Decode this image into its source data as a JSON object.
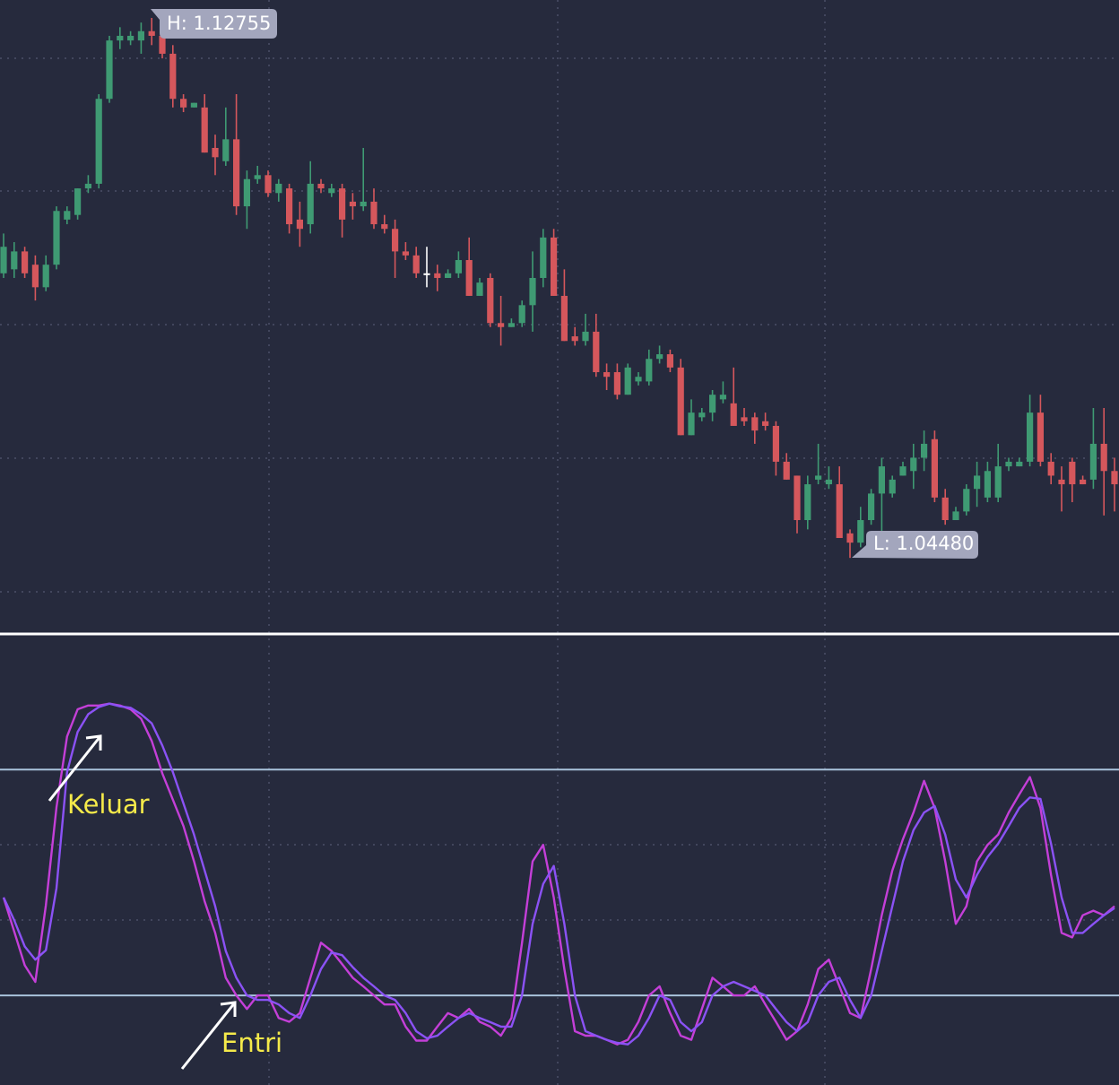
{
  "chart_data": [
    {
      "type": "candlestick",
      "ylim": [
        1.0332,
        1.1289
      ],
      "up_color": "#3f9a73",
      "down_color": "#d5575c",
      "neutral_color": "#ffffff",
      "annotations": [
        "H: 1.12755",
        "L: 1.04480"
      ],
      "ohlc": [
        [
          1.0877,
          1.0937,
          1.087,
          1.0917
        ],
        [
          1.0883,
          1.0924,
          1.087,
          1.091
        ],
        [
          1.091,
          1.0917,
          1.087,
          1.0877
        ],
        [
          1.089,
          1.0904,
          1.0836,
          1.0856
        ],
        [
          1.0856,
          1.0904,
          1.085,
          1.089
        ],
        [
          1.089,
          1.0978,
          1.0883,
          1.0971
        ],
        [
          1.0958,
          1.0978,
          1.0951,
          1.0971
        ],
        [
          1.0965,
          1.1005,
          1.0958,
          1.1005
        ],
        [
          1.1005,
          1.1025,
          1.0998,
          1.1012
        ],
        [
          1.1012,
          1.1147,
          1.1005,
          1.114
        ],
        [
          1.114,
          1.1235,
          1.1134,
          1.1228
        ],
        [
          1.1228,
          1.1248,
          1.1215,
          1.1235
        ],
        [
          1.1228,
          1.1242,
          1.1221,
          1.1235
        ],
        [
          1.1228,
          1.1255,
          1.1208,
          1.1242
        ],
        [
          1.1242,
          1.1262,
          1.1221,
          1.1235
        ],
        [
          1.1235,
          1.12755,
          1.1201,
          1.1208
        ],
        [
          1.1208,
          1.1221,
          1.1127,
          1.114
        ],
        [
          1.114,
          1.1147,
          1.112,
          1.1127
        ],
        [
          1.1127,
          1.1134,
          1.1127,
          1.1134
        ],
        [
          1.1127,
          1.1147,
          1.1059,
          1.1059
        ],
        [
          1.1066,
          1.1086,
          1.1025,
          1.1052
        ],
        [
          1.1046,
          1.1127,
          1.1039,
          1.1079
        ],
        [
          1.1079,
          1.1147,
          1.0965,
          1.0978
        ],
        [
          1.0978,
          1.1032,
          1.0944,
          1.1019
        ],
        [
          1.1019,
          1.1039,
          1.1012,
          1.1025
        ],
        [
          1.1025,
          1.1032,
          1.0992,
          1.0998
        ],
        [
          1.0998,
          1.1019,
          1.0985,
          1.1012
        ],
        [
          1.1005,
          1.1012,
          1.0937,
          1.0951
        ],
        [
          1.0958,
          1.0985,
          1.0917,
          1.0944
        ],
        [
          1.0951,
          1.1046,
          1.0937,
          1.1012
        ],
        [
          1.1012,
          1.1019,
          1.0998,
          1.1005
        ],
        [
          1.0998,
          1.1012,
          1.0992,
          1.1005
        ],
        [
          1.1005,
          1.1012,
          1.0931,
          1.0958
        ],
        [
          1.0985,
          1.0998,
          1.0958,
          1.0978
        ],
        [
          1.0978,
          1.1066,
          1.0971,
          1.0985
        ],
        [
          1.0985,
          1.1005,
          1.0944,
          1.0951
        ],
        [
          1.0951,
          1.0965,
          1.0937,
          1.0944
        ],
        [
          1.0944,
          1.0958,
          1.087,
          1.091
        ],
        [
          1.091,
          1.0924,
          1.0897,
          1.0904
        ],
        [
          1.0904,
          1.0917,
          1.087,
          1.0877
        ],
        [
          1.0877,
          1.0917,
          1.0856,
          1.0877
        ],
        [
          1.0877,
          1.089,
          1.085,
          1.087
        ],
        [
          1.087,
          1.0883,
          1.087,
          1.0877
        ],
        [
          1.0877,
          1.091,
          1.087,
          1.0897
        ],
        [
          1.0897,
          1.0931,
          1.0843,
          1.0843
        ],
        [
          1.0843,
          1.087,
          1.0843,
          1.0863
        ],
        [
          1.087,
          1.0877,
          1.0796,
          1.0802
        ],
        [
          1.0802,
          1.0843,
          1.0768,
          1.0796
        ],
        [
          1.0796,
          1.0809,
          1.0796,
          1.0802
        ],
        [
          1.0802,
          1.0836,
          1.0796,
          1.0829
        ],
        [
          1.0829,
          1.091,
          1.0789,
          1.087
        ],
        [
          1.087,
          1.0944,
          1.0856,
          1.0931
        ],
        [
          1.0931,
          1.0944,
          1.0843,
          1.0843
        ],
        [
          1.0843,
          1.0883,
          1.0775,
          1.0775
        ],
        [
          1.0782,
          1.0796,
          1.0768,
          1.0775
        ],
        [
          1.0775,
          1.0816,
          1.0768,
          1.0789
        ],
        [
          1.0789,
          1.0816,
          1.0721,
          1.0728
        ],
        [
          1.0728,
          1.0741,
          1.0701,
          1.0721
        ],
        [
          1.0728,
          1.0741,
          1.0687,
          1.0694
        ],
        [
          1.0694,
          1.0741,
          1.0694,
          1.0735
        ],
        [
          1.0714,
          1.0728,
          1.0708,
          1.0721
        ],
        [
          1.0714,
          1.0762,
          1.0708,
          1.0748
        ],
        [
          1.0748,
          1.0768,
          1.0741,
          1.0755
        ],
        [
          1.0755,
          1.0762,
          1.0728,
          1.0735
        ],
        [
          1.0735,
          1.0748,
          1.0633,
          1.0633
        ],
        [
          1.0633,
          1.0687,
          1.0633,
          1.0667
        ],
        [
          1.066,
          1.0674,
          1.0654,
          1.0667
        ],
        [
          1.0667,
          1.0701,
          1.0654,
          1.0694
        ],
        [
          1.0687,
          1.0714,
          1.0681,
          1.0694
        ],
        [
          1.0681,
          1.0735,
          1.0647,
          1.0647
        ],
        [
          1.066,
          1.0674,
          1.0647,
          1.0654
        ],
        [
          1.066,
          1.0667,
          1.062,
          1.064
        ],
        [
          1.0654,
          1.0667,
          1.064,
          1.0647
        ],
        [
          1.0647,
          1.0654,
          1.0572,
          1.0593
        ],
        [
          1.0593,
          1.0606,
          1.0566,
          1.0566
        ],
        [
          1.0572,
          1.0572,
          1.0485,
          1.0505
        ],
        [
          1.0505,
          1.0572,
          1.0491,
          1.0559
        ],
        [
          1.0566,
          1.062,
          1.0559,
          1.0572
        ],
        [
          1.0559,
          1.0586,
          1.0552,
          1.0566
        ],
        [
          1.0559,
          1.0586,
          1.0478,
          1.0478
        ],
        [
          1.0485,
          1.0491,
          1.0448,
          1.0471
        ],
        [
          1.0471,
          1.0525,
          1.0464,
          1.0505
        ],
        [
          1.0505,
          1.0552,
          1.0498,
          1.0545
        ],
        [
          1.0545,
          1.0599,
          1.0478,
          1.0586
        ],
        [
          1.0545,
          1.0572,
          1.0539,
          1.0566
        ],
        [
          1.0572,
          1.0593,
          1.0572,
          1.0586
        ],
        [
          1.0579,
          1.062,
          1.0552,
          1.0599
        ],
        [
          1.0599,
          1.064,
          1.0579,
          1.062
        ],
        [
          1.0627,
          1.064,
          1.0532,
          1.0539
        ],
        [
          1.0539,
          1.0552,
          1.0498,
          1.0505
        ],
        [
          1.0505,
          1.0525,
          1.0505,
          1.0518
        ],
        [
          1.0518,
          1.0559,
          1.0512,
          1.0552
        ],
        [
          1.0552,
          1.0593,
          1.0525,
          1.0572
        ],
        [
          1.0539,
          1.0593,
          1.0532,
          1.0579
        ],
        [
          1.0539,
          1.062,
          1.0532,
          1.0586
        ],
        [
          1.0586,
          1.0599,
          1.0579,
          1.0593
        ],
        [
          1.0586,
          1.0599,
          1.0586,
          1.0593
        ],
        [
          1.0593,
          1.0694,
          1.0586,
          1.0667
        ],
        [
          1.0667,
          1.0694,
          1.0586,
          1.0593
        ],
        [
          1.0593,
          1.0606,
          1.0559,
          1.0572
        ],
        [
          1.0566,
          1.0586,
          1.0518,
          1.0559
        ],
        [
          1.0593,
          1.0599,
          1.0532,
          1.0559
        ],
        [
          1.0566,
          1.0572,
          1.0559,
          1.0559
        ],
        [
          1.0566,
          1.0674,
          1.0552,
          1.062
        ],
        [
          1.062,
          1.0674,
          1.0512,
          1.0579
        ],
        [
          1.0579,
          1.0599,
          1.0518,
          1.0559
        ]
      ]
    },
    {
      "type": "line",
      "ylim": [
        -3.8,
        115.3
      ],
      "levels": [
        80,
        20
      ],
      "level_color": "#a9c3dc",
      "annotations": [
        "Keluar",
        "Entri"
      ],
      "annotation_color": "#f5ea4a",
      "series": [
        {
          "color": "#c43fd8",
          "values": [
            46,
            37,
            28,
            23.6,
            44,
            70,
            88.8,
            96,
            97,
            97,
            97.5,
            97,
            96,
            93.5,
            87.6,
            79,
            72,
            65,
            55.6,
            45,
            36.6,
            24.7,
            20,
            16.4,
            20,
            20,
            14,
            13,
            15.3,
            24.7,
            34,
            31.8,
            28.3,
            24.7,
            22.4,
            20,
            17.6,
            17.6,
            11.7,
            8,
            8,
            11.7,
            15.3,
            14,
            16.4,
            13,
            11.7,
            9.3,
            14,
            34,
            55.6,
            60,
            46,
            27,
            10.5,
            9.3,
            9.3,
            8.2,
            7,
            8.2,
            13,
            20,
            22.4,
            15.3,
            9.3,
            8.2,
            16.4,
            24.7,
            22.4,
            20,
            20,
            22.4,
            17.6,
            13,
            8.2,
            10.5,
            17.6,
            27,
            29.5,
            22.4,
            15.3,
            14,
            27,
            41.3,
            53.2,
            61.5,
            68.6,
            77,
            69.8,
            55.6,
            39,
            43.7,
            55.6,
            60,
            62.7,
            68.6,
            73.4,
            78,
            69.8,
            52,
            36.6,
            35.4,
            41.3,
            42.5,
            41.3,
            43.7
          ]
        },
        {
          "color": "#8b52f5",
          "values": [
            46,
            40,
            33,
            29.5,
            32,
            48.5,
            79.3,
            90,
            94.7,
            96.6,
            97.5,
            96.8,
            96.4,
            94.7,
            92.3,
            86.4,
            79.3,
            71,
            62.7,
            53.2,
            43.7,
            31.8,
            24.7,
            20,
            18.8,
            18.8,
            17.6,
            15.3,
            14,
            20,
            27,
            31.4,
            30.7,
            27.5,
            24.7,
            22.4,
            20,
            18.8,
            15.3,
            10.5,
            8.6,
            9.3,
            11.7,
            14,
            15.3,
            14,
            12.9,
            11.7,
            11.7,
            20,
            39,
            49.6,
            54.4,
            39,
            20,
            10.5,
            9.3,
            8.2,
            7.4,
            7,
            9.3,
            14,
            20,
            18.8,
            12.9,
            10.5,
            12.9,
            20,
            22.4,
            23.6,
            22.4,
            21.2,
            20,
            16.4,
            12.9,
            10.5,
            12.9,
            20,
            23.6,
            24.7,
            18.8,
            14,
            20,
            31.8,
            43.7,
            55.6,
            63.9,
            68.6,
            70.3,
            62.7,
            50.8,
            46,
            52,
            56.8,
            60.3,
            65,
            69.8,
            72.6,
            72.2,
            60.3,
            46,
            36.6,
            36.6,
            39,
            41.3,
            43.2
          ]
        }
      ]
    }
  ]
}
